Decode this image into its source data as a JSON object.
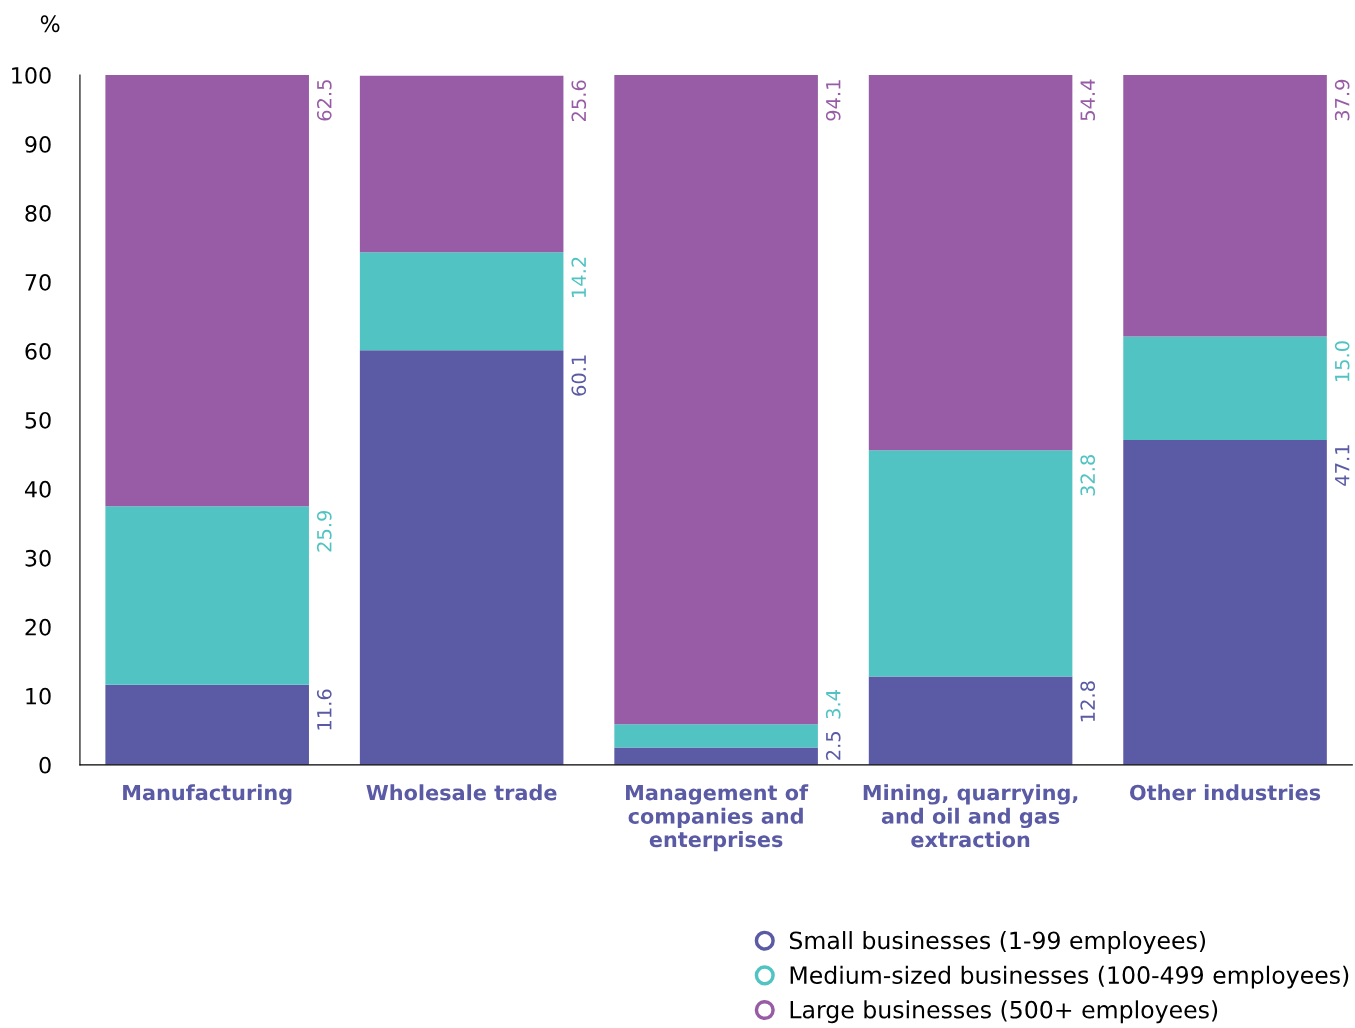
{
  "chart_data": {
    "type": "bar",
    "stacked": true,
    "ylabel": "%",
    "categories": [
      "Manufacturing",
      "Wholesale trade",
      "Management of\ncompanies and\nenterprises",
      "Mining, quarrying,\nand oil and gas\nextraction",
      "Other industries"
    ],
    "series": [
      {
        "name": "Small businesses (1-99 employees)",
        "color": "#5a5aa5",
        "values": [
          11.6,
          60.1,
          2.5,
          12.8,
          47.1
        ],
        "value_labels": [
          "11.6",
          "60.1",
          "2.5",
          "12.8",
          "47.1"
        ]
      },
      {
        "name": "Medium-sized businesses (100-499 employees)",
        "color": "#52c3c3",
        "values": [
          25.9,
          14.2,
          3.4,
          32.8,
          15.0
        ],
        "value_labels": [
          "25.9",
          "14.2",
          "3.4",
          "32.8",
          "15.0"
        ]
      },
      {
        "name": "Large businesses (500+ employees)",
        "color": "#975ca5",
        "values": [
          62.5,
          25.6,
          94.1,
          54.4,
          37.9
        ],
        "value_labels": [
          "62.5",
          "25.6",
          "94.1",
          "54.4",
          "37.9"
        ]
      }
    ],
    "ylim": [
      0,
      100
    ],
    "yticks": [
      0,
      10,
      20,
      30,
      40,
      50,
      60,
      70,
      80,
      90,
      100
    ],
    "grid": false,
    "legend": "bottom right",
    "marker": "circle"
  }
}
